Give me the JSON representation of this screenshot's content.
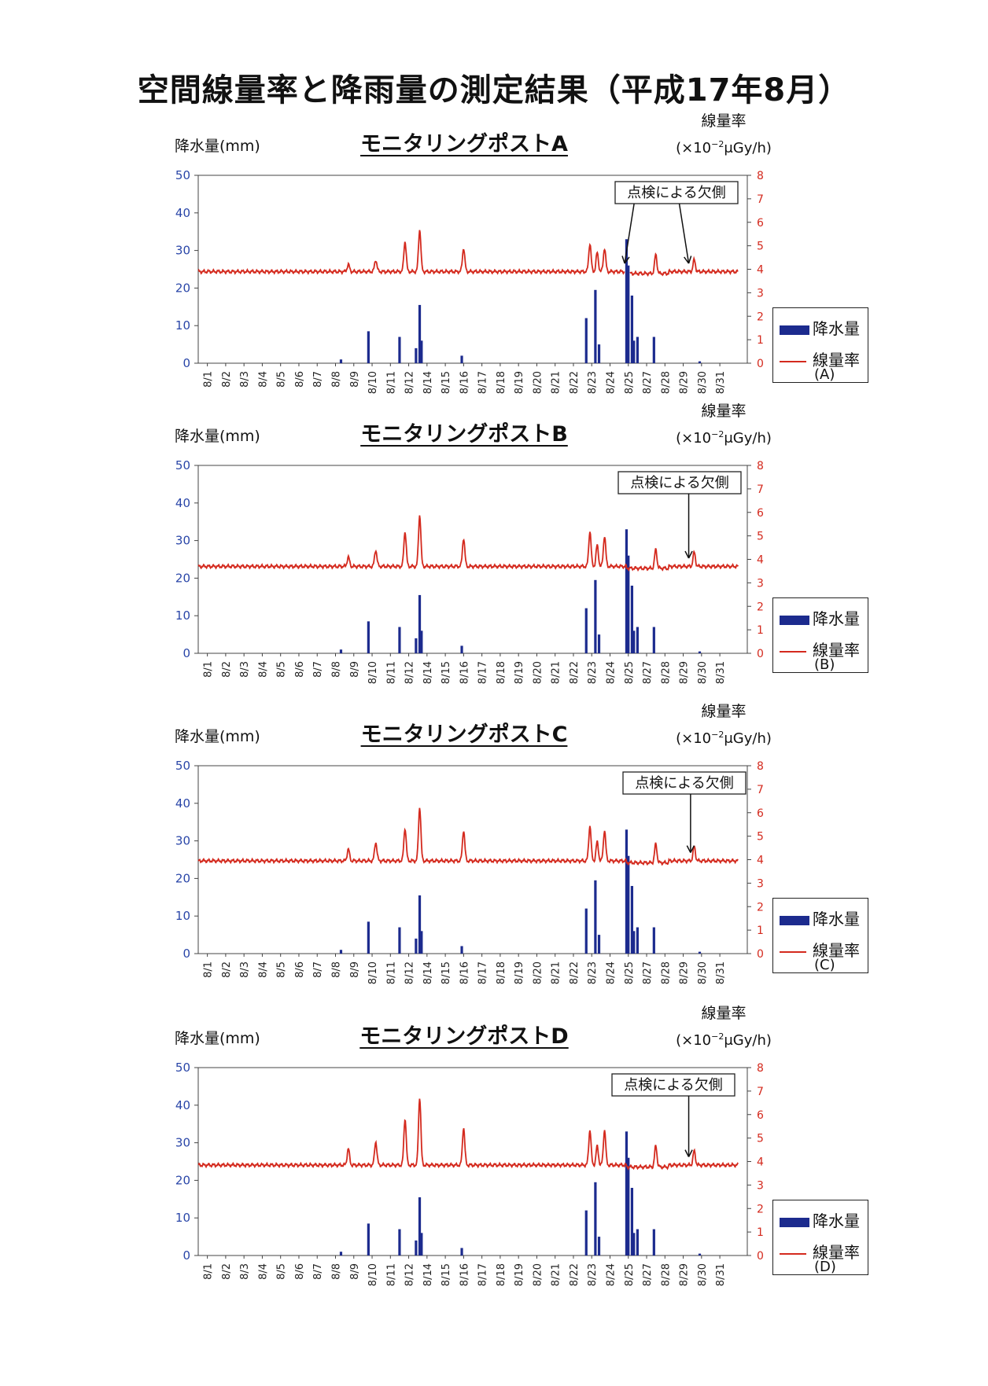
{
  "title": "空間線量率と降雨量の測定結果（平成17年8月）",
  "colors": {
    "rain": "#1c2b8e",
    "dose": "#d42a1e",
    "left_axis": "#2a46a8",
    "right_axis": "#d42a1e"
  },
  "left_axis_label": "降水量(mm)",
  "right_axis_label_1": "線量率",
  "right_axis_label_2_pre": "(×10",
  "right_axis_label_2_sup": "−2",
  "right_axis_label_2_post": "μGy/h)",
  "legend_rain": "降水量",
  "legend_dose": "線量率",
  "annotation": "点検による欠側",
  "chart_data": [
    {
      "type": "bar+line",
      "title": "モニタリングポストA",
      "legend_post": "(A)",
      "categories": [
        "8/1",
        "8/2",
        "8/3",
        "8/4",
        "8/5",
        "8/6",
        "8/7",
        "8/8",
        "8/9",
        "8/10",
        "8/11",
        "8/12",
        "8/14",
        "8/15",
        "8/16",
        "8/17",
        "8/18",
        "8/19",
        "8/20",
        "8/21",
        "8/22",
        "8/23",
        "8/24",
        "8/25",
        "8/27",
        "8/28",
        "8/29",
        "8/30",
        "8/31"
      ],
      "left_ylim": [
        0,
        50
      ],
      "left_ticks": [
        0,
        10,
        20,
        30,
        40,
        50
      ],
      "right_ylim": [
        0,
        8
      ],
      "right_ticks": [
        0,
        1,
        2,
        3,
        4,
        5,
        6,
        7,
        8
      ],
      "dose_baseline": 3.9,
      "dose_peaks": [
        [
          7.7,
          0.3
        ],
        [
          9.2,
          0.5
        ],
        [
          10.8,
          1.3
        ],
        [
          11.6,
          1.8
        ],
        [
          14.0,
          1.0
        ],
        [
          20.9,
          1.2
        ],
        [
          21.3,
          0.8
        ],
        [
          21.7,
          1.0
        ],
        [
          24.5,
          0.8
        ],
        [
          26.6,
          0.5
        ]
      ],
      "rain": [
        [
          7.3,
          1
        ],
        [
          8.8,
          8.5
        ],
        [
          10.5,
          7
        ],
        [
          11.4,
          4
        ],
        [
          11.6,
          15.5
        ],
        [
          11.7,
          6
        ],
        [
          13.9,
          2
        ],
        [
          20.7,
          12
        ],
        [
          21.2,
          19.5
        ],
        [
          21.4,
          5
        ],
        [
          22.9,
          33
        ],
        [
          23.0,
          26
        ],
        [
          23.2,
          18
        ],
        [
          23.3,
          6
        ],
        [
          23.5,
          7
        ],
        [
          24.4,
          7
        ],
        [
          26.9,
          0.5
        ]
      ],
      "annotation_arrow_days": [
        22.8,
        26.3
      ]
    },
    {
      "type": "bar+line",
      "title": "モニタリングポストB",
      "legend_post": "(B)",
      "categories": [
        "8/1",
        "8/2",
        "8/3",
        "8/4",
        "8/5",
        "8/6",
        "8/7",
        "8/8",
        "8/9",
        "8/10",
        "8/11",
        "8/12",
        "8/14",
        "8/15",
        "8/16",
        "8/17",
        "8/18",
        "8/19",
        "8/20",
        "8/21",
        "8/22",
        "8/23",
        "8/24",
        "8/25",
        "8/27",
        "8/28",
        "8/29",
        "8/30",
        "8/31"
      ],
      "left_ylim": [
        0,
        50
      ],
      "left_ticks": [
        0,
        10,
        20,
        30,
        40,
        50
      ],
      "right_ylim": [
        0,
        8
      ],
      "right_ticks": [
        0,
        1,
        2,
        3,
        4,
        5,
        6,
        7,
        8
      ],
      "dose_baseline": 3.7,
      "dose_peaks": [
        [
          7.7,
          0.4
        ],
        [
          9.2,
          0.7
        ],
        [
          10.8,
          1.5
        ],
        [
          11.6,
          2.2
        ],
        [
          14.0,
          1.2
        ],
        [
          20.9,
          1.5
        ],
        [
          21.3,
          0.9
        ],
        [
          21.7,
          1.3
        ],
        [
          24.5,
          0.8
        ],
        [
          26.6,
          0.6
        ]
      ],
      "rain": [
        [
          7.3,
          1
        ],
        [
          8.8,
          8.5
        ],
        [
          10.5,
          7
        ],
        [
          11.4,
          4
        ],
        [
          11.6,
          15.5
        ],
        [
          11.7,
          6
        ],
        [
          13.9,
          2
        ],
        [
          20.7,
          12
        ],
        [
          21.2,
          19.5
        ],
        [
          21.4,
          5
        ],
        [
          22.9,
          33
        ],
        [
          23.0,
          26
        ],
        [
          23.2,
          18
        ],
        [
          23.3,
          6
        ],
        [
          23.5,
          7
        ],
        [
          24.4,
          7
        ],
        [
          26.9,
          0.5
        ]
      ],
      "annotation_arrow_days": [
        26.3
      ]
    },
    {
      "type": "bar+line",
      "title": "モニタリングポストC",
      "legend_post": "(C)",
      "categories": [
        "8/1",
        "8/2",
        "8/3",
        "8/4",
        "8/5",
        "8/6",
        "8/7",
        "8/8",
        "8/9",
        "8/10",
        "8/11",
        "8/12",
        "8/14",
        "8/15",
        "8/16",
        "8/17",
        "8/18",
        "8/19",
        "8/20",
        "8/21",
        "8/22",
        "8/23",
        "8/24",
        "8/25",
        "8/27",
        "8/28",
        "8/29",
        "8/30",
        "8/31"
      ],
      "left_ylim": [
        0,
        50
      ],
      "left_ticks": [
        0,
        10,
        20,
        30,
        40,
        50
      ],
      "right_ylim": [
        0,
        8
      ],
      "right_ticks": [
        0,
        1,
        2,
        3,
        4,
        5,
        6,
        7,
        8
      ],
      "dose_baseline": 3.95,
      "dose_peaks": [
        [
          7.7,
          0.5
        ],
        [
          9.2,
          0.8
        ],
        [
          10.8,
          1.4
        ],
        [
          11.6,
          2.3
        ],
        [
          14.0,
          1.3
        ],
        [
          20.9,
          1.5
        ],
        [
          21.3,
          0.8
        ],
        [
          21.7,
          1.3
        ],
        [
          24.5,
          0.8
        ],
        [
          26.6,
          0.6
        ]
      ],
      "rain": [
        [
          7.3,
          1
        ],
        [
          8.8,
          8.5
        ],
        [
          10.5,
          7
        ],
        [
          11.4,
          4
        ],
        [
          11.6,
          15.5
        ],
        [
          11.7,
          6
        ],
        [
          13.9,
          2
        ],
        [
          20.7,
          12
        ],
        [
          21.2,
          19.5
        ],
        [
          21.4,
          5
        ],
        [
          22.9,
          33
        ],
        [
          23.0,
          26
        ],
        [
          23.2,
          18
        ],
        [
          23.3,
          6
        ],
        [
          23.5,
          7
        ],
        [
          24.4,
          7
        ],
        [
          26.9,
          0.5
        ]
      ],
      "annotation_arrow_days": [
        26.4
      ]
    },
    {
      "type": "bar+line",
      "title": "モニタリングポストD",
      "legend_post": "(D)",
      "categories": [
        "8/1",
        "8/2",
        "8/3",
        "8/4",
        "8/5",
        "8/6",
        "8/7",
        "8/8",
        "8/9",
        "8/10",
        "8/11",
        "8/12",
        "8/14",
        "8/15",
        "8/16",
        "8/17",
        "8/18",
        "8/19",
        "8/20",
        "8/21",
        "8/22",
        "8/23",
        "8/24",
        "8/25",
        "8/27",
        "8/28",
        "8/29",
        "8/30",
        "8/31"
      ],
      "left_ylim": [
        0,
        50
      ],
      "left_ticks": [
        0,
        10,
        20,
        30,
        40,
        50
      ],
      "right_ylim": [
        0,
        8
      ],
      "right_ticks": [
        0,
        1,
        2,
        3,
        4,
        5,
        6,
        7,
        8
      ],
      "dose_baseline": 3.85,
      "dose_peaks": [
        [
          7.7,
          0.7
        ],
        [
          9.2,
          1.0
        ],
        [
          10.8,
          2.0
        ],
        [
          11.6,
          2.9
        ],
        [
          14.0,
          1.6
        ],
        [
          20.9,
          1.5
        ],
        [
          21.3,
          0.8
        ],
        [
          21.7,
          1.5
        ],
        [
          24.5,
          0.9
        ],
        [
          26.6,
          0.6
        ]
      ],
      "rain": [
        [
          7.3,
          1
        ],
        [
          8.8,
          8.5
        ],
        [
          10.5,
          7
        ],
        [
          11.4,
          4
        ],
        [
          11.6,
          15.5
        ],
        [
          11.7,
          6
        ],
        [
          13.9,
          2
        ],
        [
          20.7,
          12
        ],
        [
          21.2,
          19.5
        ],
        [
          21.4,
          5
        ],
        [
          22.9,
          33
        ],
        [
          23.0,
          26
        ],
        [
          23.2,
          18
        ],
        [
          23.3,
          6
        ],
        [
          23.5,
          7
        ],
        [
          24.4,
          7
        ],
        [
          26.9,
          0.5
        ]
      ],
      "annotation_arrow_days": [
        26.3
      ]
    }
  ]
}
